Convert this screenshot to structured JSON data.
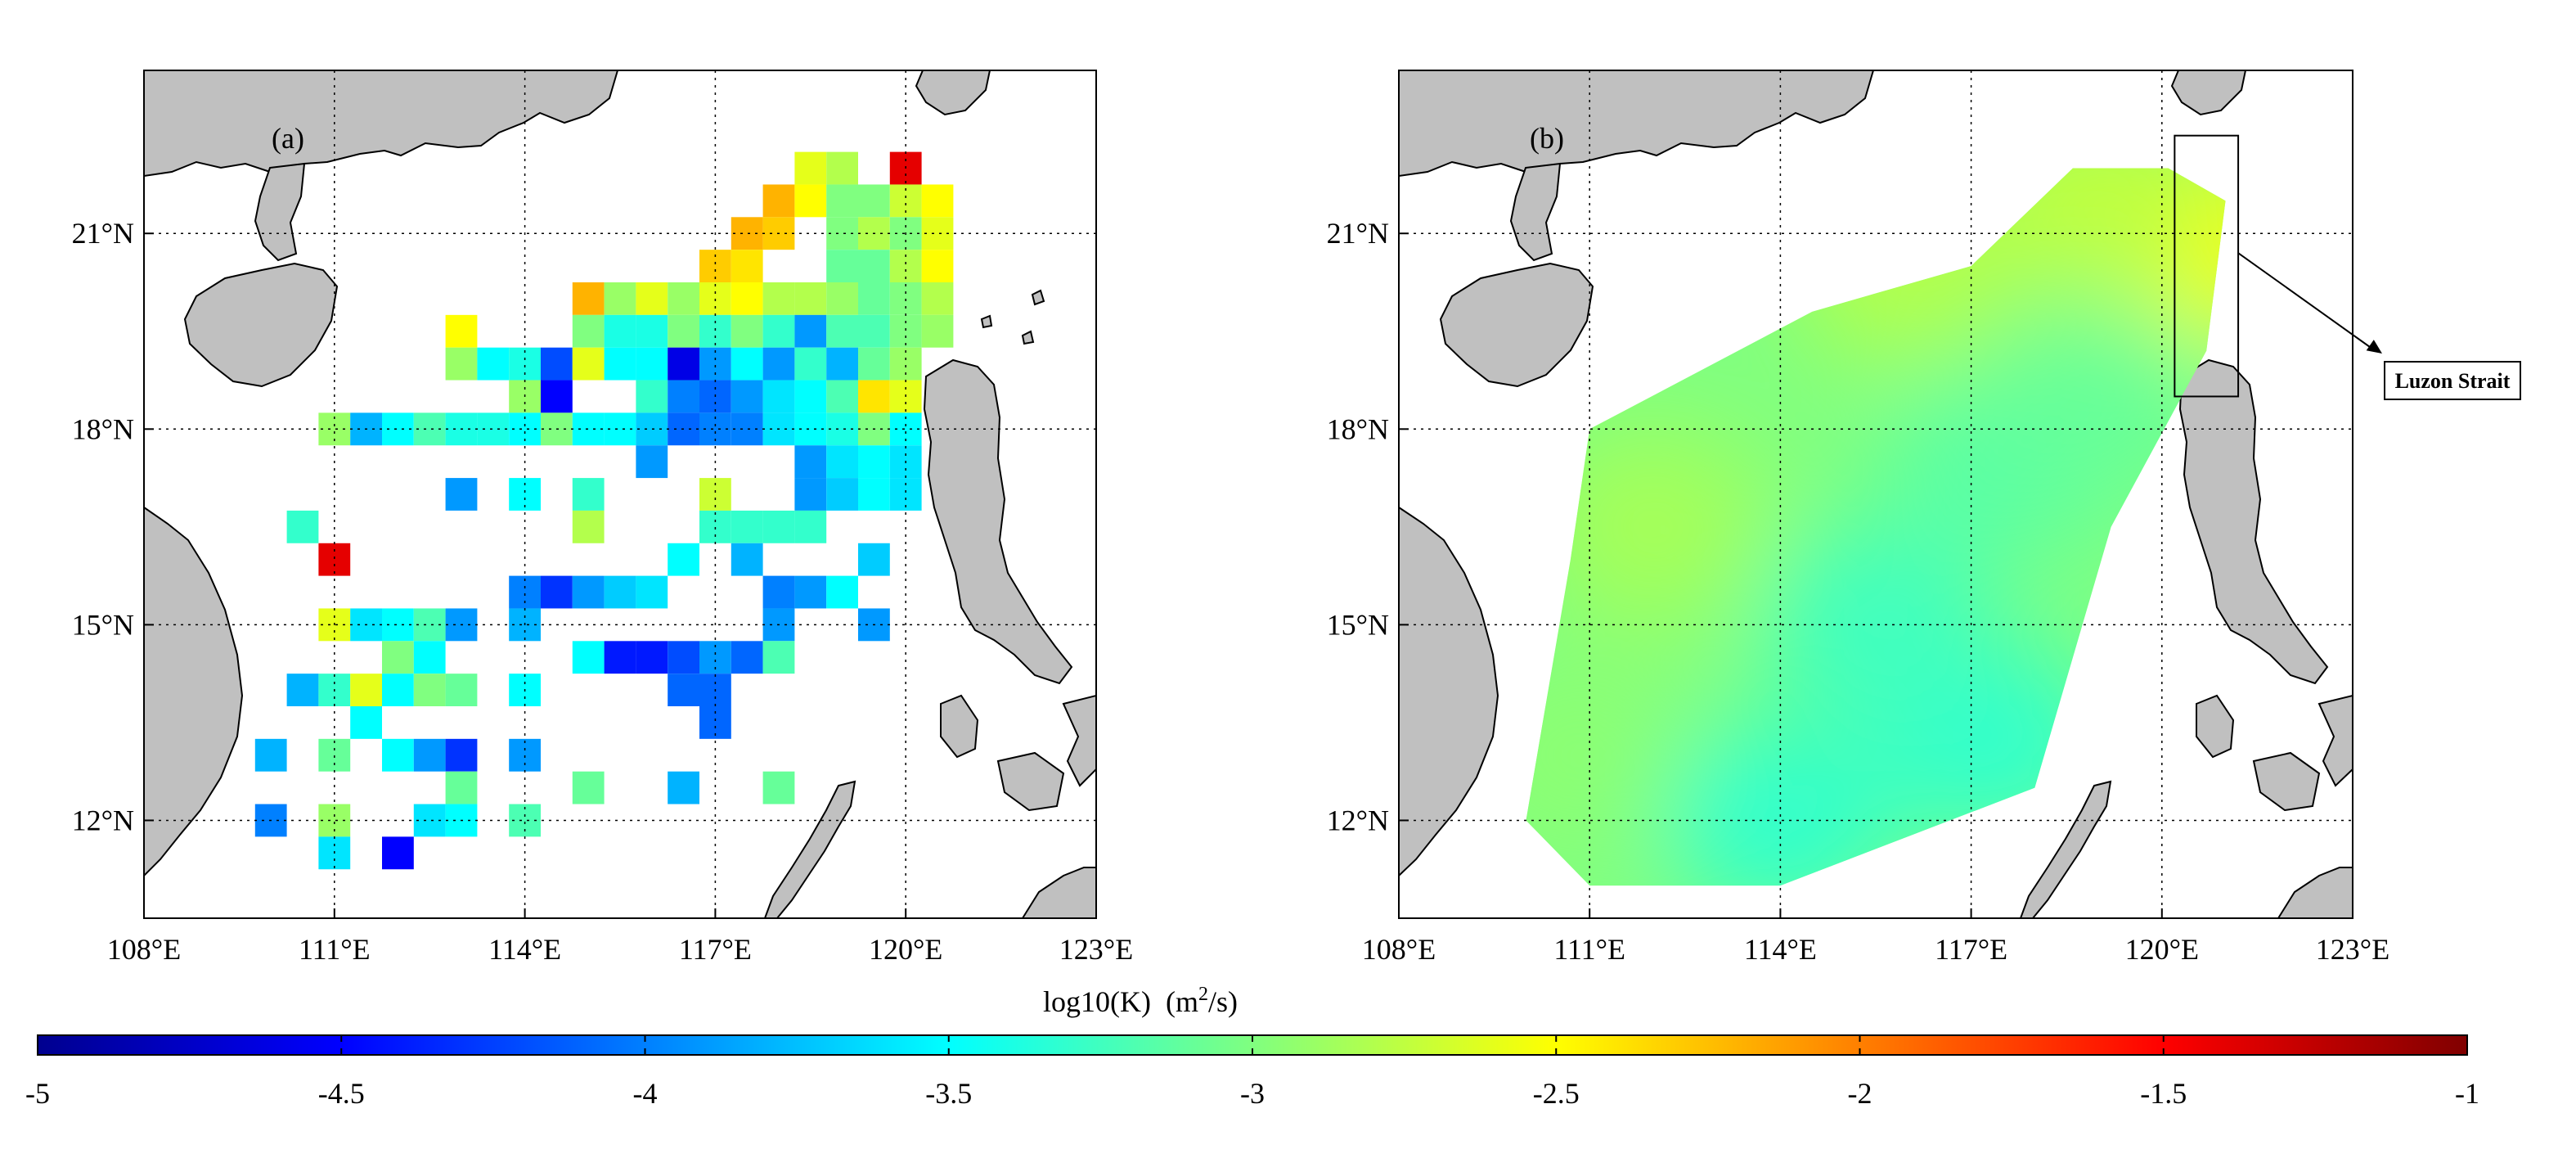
{
  "panels": [
    {
      "label": "(a)",
      "type": "gridded-cells",
      "x_ticks": [
        "108°E",
        "111°E",
        "114°E",
        "117°E",
        "120°E",
        "123°E"
      ],
      "y_ticks": [
        "12°N",
        "15°N",
        "18°N",
        "21°N"
      ],
      "extent": {
        "lon": [
          108,
          123
        ],
        "lat": [
          10.5,
          23.5
        ]
      }
    },
    {
      "label": "(b)",
      "type": "interpolated-field",
      "x_ticks": [
        "108°E",
        "111°E",
        "114°E",
        "117°E",
        "120°E",
        "123°E"
      ],
      "y_ticks": [
        "12°N",
        "15°N",
        "18°N",
        "21°N"
      ],
      "extent": {
        "lon": [
          108,
          123
        ],
        "lat": [
          10.5,
          23.5
        ]
      },
      "annotation": "Luzon Strait",
      "annotation_box": {
        "lon": [
          120.2,
          121.2
        ],
        "lat": [
          18.5,
          22.5
        ]
      },
      "field_hull": [
        [
          110,
          12
        ],
        [
          110.7,
          16
        ],
        [
          111,
          18
        ],
        [
          114.5,
          19.8
        ],
        [
          117,
          20.5
        ],
        [
          118.6,
          22
        ],
        [
          120.1,
          22
        ],
        [
          121,
          21.5
        ],
        [
          120.7,
          19.2
        ],
        [
          119.2,
          16.5
        ],
        [
          118,
          12.5
        ],
        [
          114,
          11
        ],
        [
          111,
          11
        ]
      ],
      "field_patches": [
        {
          "lon": 120.9,
          "lat": 20.8,
          "value": -2.55
        },
        {
          "lon": 119,
          "lat": 21.5,
          "value": -2.75
        },
        {
          "lon": 116,
          "lat": 20.5,
          "value": -2.8
        },
        {
          "lon": 112,
          "lat": 16.5,
          "value": -2.85
        },
        {
          "lon": 110.8,
          "lat": 13,
          "value": -2.95
        },
        {
          "lon": 117.3,
          "lat": 13.2,
          "value": -3.3
        },
        {
          "lon": 115.5,
          "lat": 15,
          "value": -3.25
        },
        {
          "lon": 114,
          "lat": 12,
          "value": -3.3
        },
        {
          "lon": 117.5,
          "lat": 17.5,
          "value": -3.15
        },
        {
          "lon": 119,
          "lat": 18.5,
          "value": -3.1
        }
      ]
    }
  ],
  "colorbar": {
    "title_main": "log10(K)",
    "title_unit_pre": "(m",
    "title_unit_sup": "2",
    "title_unit_post": "/s)",
    "min": -5,
    "max": -1,
    "tick_labels": [
      "-5",
      "-4.5",
      "-4",
      "-3.5",
      "-3",
      "-2.5",
      "-2",
      "-1.5",
      "-1"
    ],
    "colormap": "jet"
  },
  "chart_data": {
    "type": "heatmap",
    "title": "",
    "xlabel": "",
    "ylabel": "",
    "colorbar_label": "log10(K) (m2/s)",
    "value_range": [
      -5,
      -1
    ],
    "cell_size_deg": 0.5,
    "panel_a_cells": [
      {
        "lon": 118.5,
        "lat": 22,
        "value": -2.6
      },
      {
        "lon": 119,
        "lat": 22,
        "value": -2.8
      },
      {
        "lon": 120,
        "lat": 22,
        "value": -1.4
      },
      {
        "lon": 118,
        "lat": 21.5,
        "value": -2.2
      },
      {
        "lon": 118.5,
        "lat": 21.5,
        "value": -2.5
      },
      {
        "lon": 119,
        "lat": 21.5,
        "value": -3.0
      },
      {
        "lon": 119.5,
        "lat": 21.5,
        "value": -3.0
      },
      {
        "lon": 120,
        "lat": 21.5,
        "value": -2.7
      },
      {
        "lon": 120.5,
        "lat": 21.5,
        "value": -2.5
      },
      {
        "lon": 117.5,
        "lat": 21,
        "value": -2.2
      },
      {
        "lon": 118,
        "lat": 21,
        "value": -2.3
      },
      {
        "lon": 119,
        "lat": 21,
        "value": -3.0
      },
      {
        "lon": 119.5,
        "lat": 21,
        "value": -2.8
      },
      {
        "lon": 120,
        "lat": 21,
        "value": -3.0
      },
      {
        "lon": 120.5,
        "lat": 21,
        "value": -2.6
      },
      {
        "lon": 117,
        "lat": 20.5,
        "value": -2.3
      },
      {
        "lon": 117.5,
        "lat": 20.5,
        "value": -2.4
      },
      {
        "lon": 119,
        "lat": 20.5,
        "value": -3.1
      },
      {
        "lon": 119.5,
        "lat": 20.5,
        "value": -3.1
      },
      {
        "lon": 120,
        "lat": 20.5,
        "value": -2.8
      },
      {
        "lon": 120.5,
        "lat": 20.5,
        "value": -2.5
      },
      {
        "lon": 115,
        "lat": 20,
        "value": -2.2
      },
      {
        "lon": 115.5,
        "lat": 20,
        "value": -2.9
      },
      {
        "lon": 116,
        "lat": 20,
        "value": -2.6
      },
      {
        "lon": 116.5,
        "lat": 20,
        "value": -2.9
      },
      {
        "lon": 117,
        "lat": 20,
        "value": -2.6
      },
      {
        "lon": 117.5,
        "lat": 20,
        "value": -2.5
      },
      {
        "lon": 118,
        "lat": 20,
        "value": -2.8
      },
      {
        "lon": 118.5,
        "lat": 20,
        "value": -2.8
      },
      {
        "lon": 119,
        "lat": 20,
        "value": -2.9
      },
      {
        "lon": 119.5,
        "lat": 20,
        "value": -3.1
      },
      {
        "lon": 120,
        "lat": 20,
        "value": -3.0
      },
      {
        "lon": 120.5,
        "lat": 20,
        "value": -2.8
      },
      {
        "lon": 113,
        "lat": 19.5,
        "value": -2.5
      },
      {
        "lon": 115,
        "lat": 19.5,
        "value": -3.0
      },
      {
        "lon": 115.5,
        "lat": 19.5,
        "value": -3.4
      },
      {
        "lon": 116,
        "lat": 19.5,
        "value": -3.4
      },
      {
        "lon": 116.5,
        "lat": 19.5,
        "value": -3.0
      },
      {
        "lon": 117,
        "lat": 19.5,
        "value": -3.3
      },
      {
        "lon": 117.5,
        "lat": 19.5,
        "value": -3.0
      },
      {
        "lon": 118,
        "lat": 19.5,
        "value": -3.3
      },
      {
        "lon": 118.5,
        "lat": 19.5,
        "value": -3.9
      },
      {
        "lon": 119,
        "lat": 19.5,
        "value": -3.2
      },
      {
        "lon": 119.5,
        "lat": 19.5,
        "value": -3.2
      },
      {
        "lon": 120,
        "lat": 19.5,
        "value": -3.0
      },
      {
        "lon": 120.5,
        "lat": 19.5,
        "value": -2.9
      },
      {
        "lon": 113,
        "lat": 19,
        "value": -2.9
      },
      {
        "lon": 113.5,
        "lat": 19,
        "value": -3.5
      },
      {
        "lon": 114,
        "lat": 19,
        "value": -3.4
      },
      {
        "lon": 114.5,
        "lat": 19,
        "value": -4.2
      },
      {
        "lon": 115,
        "lat": 19,
        "value": -2.6
      },
      {
        "lon": 115.5,
        "lat": 19,
        "value": -3.5
      },
      {
        "lon": 116,
        "lat": 19,
        "value": -3.5
      },
      {
        "lon": 116.5,
        "lat": 19,
        "value": -4.6
      },
      {
        "lon": 117,
        "lat": 19,
        "value": -3.9
      },
      {
        "lon": 117.5,
        "lat": 19,
        "value": -3.5
      },
      {
        "lon": 118,
        "lat": 19,
        "value": -3.9
      },
      {
        "lon": 118.5,
        "lat": 19,
        "value": -3.3
      },
      {
        "lon": 119,
        "lat": 19,
        "value": -3.8
      },
      {
        "lon": 119.5,
        "lat": 19,
        "value": -3.1
      },
      {
        "lon": 120,
        "lat": 19,
        "value": -2.9
      },
      {
        "lon": 114,
        "lat": 18.5,
        "value": -2.9
      },
      {
        "lon": 114.5,
        "lat": 18.5,
        "value": -4.5
      },
      {
        "lon": 116,
        "lat": 18.5,
        "value": -3.3
      },
      {
        "lon": 116.5,
        "lat": 18.5,
        "value": -4.0
      },
      {
        "lon": 117,
        "lat": 18.5,
        "value": -4.1
      },
      {
        "lon": 117.5,
        "lat": 18.5,
        "value": -3.9
      },
      {
        "lon": 118,
        "lat": 18.5,
        "value": -3.6
      },
      {
        "lon": 118.5,
        "lat": 18.5,
        "value": -3.5
      },
      {
        "lon": 119,
        "lat": 18.5,
        "value": -3.2
      },
      {
        "lon": 119.5,
        "lat": 18.5,
        "value": -2.4
      },
      {
        "lon": 120,
        "lat": 18.5,
        "value": -2.6
      },
      {
        "lon": 111,
        "lat": 18,
        "value": -2.9
      },
      {
        "lon": 111.5,
        "lat": 18,
        "value": -3.8
      },
      {
        "lon": 112,
        "lat": 18,
        "value": -3.5
      },
      {
        "lon": 112.5,
        "lat": 18,
        "value": -3.2
      },
      {
        "lon": 113,
        "lat": 18,
        "value": -3.4
      },
      {
        "lon": 113.5,
        "lat": 18,
        "value": -3.4
      },
      {
        "lon": 114,
        "lat": 18,
        "value": -3.5
      },
      {
        "lon": 114.5,
        "lat": 18,
        "value": -3.0
      },
      {
        "lon": 115,
        "lat": 18,
        "value": -3.5
      },
      {
        "lon": 115.5,
        "lat": 18,
        "value": -3.5
      },
      {
        "lon": 116,
        "lat": 18,
        "value": -3.7
      },
      {
        "lon": 116.5,
        "lat": 18,
        "value": -4.1
      },
      {
        "lon": 117,
        "lat": 18,
        "value": -4.0
      },
      {
        "lon": 117.5,
        "lat": 18,
        "value": -4.0
      },
      {
        "lon": 118,
        "lat": 18,
        "value": -3.6
      },
      {
        "lon": 118.5,
        "lat": 18,
        "value": -3.5
      },
      {
        "lon": 119,
        "lat": 18,
        "value": -3.4
      },
      {
        "lon": 119.5,
        "lat": 18,
        "value": -3.0
      },
      {
        "lon": 120,
        "lat": 18,
        "value": -3.5
      },
      {
        "lon": 116,
        "lat": 17.5,
        "value": -3.9
      },
      {
        "lon": 118.5,
        "lat": 17.5,
        "value": -3.9
      },
      {
        "lon": 119,
        "lat": 17.5,
        "value": -3.6
      },
      {
        "lon": 119.5,
        "lat": 17.5,
        "value": -3.5
      },
      {
        "lon": 120,
        "lat": 17.5,
        "value": -3.6
      },
      {
        "lon": 113,
        "lat": 17,
        "value": -3.9
      },
      {
        "lon": 114,
        "lat": 17,
        "value": -3.5
      },
      {
        "lon": 115,
        "lat": 17,
        "value": -3.3
      },
      {
        "lon": 117,
        "lat": 17,
        "value": -2.7
      },
      {
        "lon": 118.5,
        "lat": 17,
        "value": -3.9
      },
      {
        "lon": 119,
        "lat": 17,
        "value": -3.7
      },
      {
        "lon": 119.5,
        "lat": 17,
        "value": -3.5
      },
      {
        "lon": 120,
        "lat": 17,
        "value": -3.6
      },
      {
        "lon": 110.5,
        "lat": 16.5,
        "value": -3.3
      },
      {
        "lon": 115,
        "lat": 16.5,
        "value": -2.8
      },
      {
        "lon": 117,
        "lat": 16.5,
        "value": -3.3
      },
      {
        "lon": 117.5,
        "lat": 16.5,
        "value": -3.3
      },
      {
        "lon": 118,
        "lat": 16.5,
        "value": -3.3
      },
      {
        "lon": 118.5,
        "lat": 16.5,
        "value": -3.3
      },
      {
        "lon": 111,
        "lat": 16,
        "value": -1.4
      },
      {
        "lon": 116.5,
        "lat": 16,
        "value": -3.5
      },
      {
        "lon": 117.5,
        "lat": 16,
        "value": -3.8
      },
      {
        "lon": 119.5,
        "lat": 16,
        "value": -3.7
      },
      {
        "lon": 114,
        "lat": 15.5,
        "value": -4.0
      },
      {
        "lon": 114.5,
        "lat": 15.5,
        "value": -4.3
      },
      {
        "lon": 115,
        "lat": 15.5,
        "value": -3.9
      },
      {
        "lon": 115.5,
        "lat": 15.5,
        "value": -3.7
      },
      {
        "lon": 116,
        "lat": 15.5,
        "value": -3.6
      },
      {
        "lon": 118,
        "lat": 15.5,
        "value": -4.0
      },
      {
        "lon": 118.5,
        "lat": 15.5,
        "value": -3.9
      },
      {
        "lon": 119,
        "lat": 15.5,
        "value": -3.5
      },
      {
        "lon": 111,
        "lat": 15,
        "value": -2.6
      },
      {
        "lon": 111.5,
        "lat": 15,
        "value": -3.6
      },
      {
        "lon": 112,
        "lat": 15,
        "value": -3.5
      },
      {
        "lon": 112.5,
        "lat": 15,
        "value": -3.2
      },
      {
        "lon": 113,
        "lat": 15,
        "value": -3.9
      },
      {
        "lon": 114,
        "lat": 15,
        "value": -3.8
      },
      {
        "lon": 118,
        "lat": 15,
        "value": -3.9
      },
      {
        "lon": 119.5,
        "lat": 15,
        "value": -3.9
      },
      {
        "lon": 112,
        "lat": 14.5,
        "value": -3.0
      },
      {
        "lon": 112.5,
        "lat": 14.5,
        "value": -3.5
      },
      {
        "lon": 115,
        "lat": 14.5,
        "value": -3.5
      },
      {
        "lon": 115.5,
        "lat": 14.5,
        "value": -4.4
      },
      {
        "lon": 116,
        "lat": 14.5,
        "value": -4.4
      },
      {
        "lon": 116.5,
        "lat": 14.5,
        "value": -4.2
      },
      {
        "lon": 117,
        "lat": 14.5,
        "value": -3.9
      },
      {
        "lon": 117.5,
        "lat": 14.5,
        "value": -4.1
      },
      {
        "lon": 118,
        "lat": 14.5,
        "value": -3.2
      },
      {
        "lon": 110.5,
        "lat": 14,
        "value": -3.8
      },
      {
        "lon": 111,
        "lat": 14,
        "value": -3.3
      },
      {
        "lon": 111.5,
        "lat": 14,
        "value": -2.6
      },
      {
        "lon": 112,
        "lat": 14,
        "value": -3.5
      },
      {
        "lon": 112.5,
        "lat": 14,
        "value": -3.0
      },
      {
        "lon": 113,
        "lat": 14,
        "value": -3.1
      },
      {
        "lon": 114,
        "lat": 14,
        "value": -3.5
      },
      {
        "lon": 116.5,
        "lat": 14,
        "value": -4.1
      },
      {
        "lon": 117,
        "lat": 14,
        "value": -4.1
      },
      {
        "lon": 111.5,
        "lat": 13.5,
        "value": -3.5
      },
      {
        "lon": 117,
        "lat": 13.5,
        "value": -4.1
      },
      {
        "lon": 110,
        "lat": 13,
        "value": -3.8
      },
      {
        "lon": 111,
        "lat": 13,
        "value": -3.1
      },
      {
        "lon": 112,
        "lat": 13,
        "value": -3.5
      },
      {
        "lon": 112.5,
        "lat": 13,
        "value": -3.9
      },
      {
        "lon": 113,
        "lat": 13,
        "value": -4.3
      },
      {
        "lon": 114,
        "lat": 13,
        "value": -3.9
      },
      {
        "lon": 113,
        "lat": 12.5,
        "value": -3.1
      },
      {
        "lon": 115,
        "lat": 12.5,
        "value": -3.1
      },
      {
        "lon": 116.5,
        "lat": 12.5,
        "value": -3.8
      },
      {
        "lon": 118,
        "lat": 12.5,
        "value": -3.1
      },
      {
        "lon": 110,
        "lat": 12,
        "value": -4.0
      },
      {
        "lon": 111,
        "lat": 12,
        "value": -2.9
      },
      {
        "lon": 112.5,
        "lat": 12,
        "value": -3.6
      },
      {
        "lon": 113,
        "lat": 12,
        "value": -3.5
      },
      {
        "lon": 114,
        "lat": 12,
        "value": -3.2
      },
      {
        "lon": 111,
        "lat": 11.5,
        "value": -3.6
      },
      {
        "lon": 112,
        "lat": 11.5,
        "value": -4.5
      }
    ]
  }
}
